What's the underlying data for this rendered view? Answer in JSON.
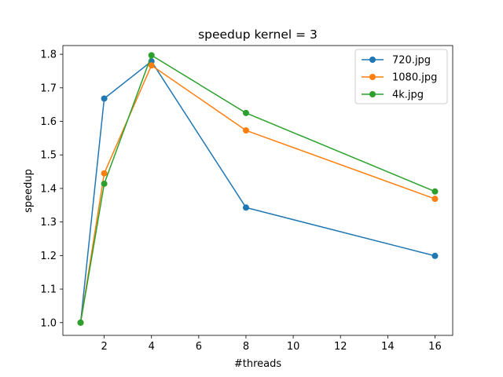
{
  "chart_data": {
    "type": "line",
    "title": "speedup kernel = 3",
    "xlabel": "#threads",
    "ylabel": "speedup",
    "x": [
      1,
      2,
      4,
      8,
      16
    ],
    "xlim": [
      0.25,
      16.75
    ],
    "ylim": [
      0.962,
      1.826
    ],
    "xticks": [
      2,
      4,
      6,
      8,
      10,
      12,
      14,
      16
    ],
    "yticks": [
      1.0,
      1.1,
      1.2,
      1.3,
      1.4,
      1.5,
      1.6,
      1.7,
      1.8
    ],
    "grid": false,
    "legend_position": "top-right",
    "series": [
      {
        "name": "720.jpg",
        "color": "#1f77b4",
        "values": [
          1.0,
          1.668,
          1.779,
          1.343,
          1.199
        ]
      },
      {
        "name": "1080.jpg",
        "color": "#ff7f0e",
        "values": [
          1.0,
          1.445,
          1.767,
          1.573,
          1.369
        ]
      },
      {
        "name": "4k.jpg",
        "color": "#2ca02c",
        "values": [
          1.0,
          1.414,
          1.797,
          1.625,
          1.391
        ]
      }
    ]
  }
}
